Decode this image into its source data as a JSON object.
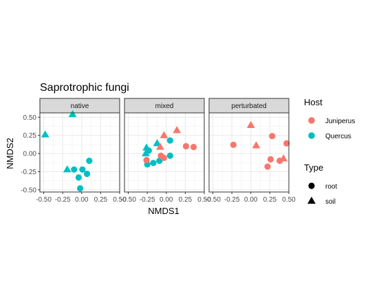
{
  "chart_data": {
    "type": "scatter",
    "title": "Saprotrophic fungi",
    "xlabel": "NMDS1",
    "ylabel": "NMDS2",
    "xlim": [
      -0.55,
      0.5
    ],
    "ylim": [
      -0.53,
      0.56
    ],
    "x_ticks": [
      -0.5,
      -0.25,
      0.0,
      0.25,
      0.5
    ],
    "x_tick_labels": [
      "-0.50",
      "-0.25",
      "0.00",
      "0.25",
      "0.50"
    ],
    "y_ticks": [
      -0.5,
      -0.25,
      0.0,
      0.25,
      0.5
    ],
    "y_tick_labels": [
      "-0.50",
      "-0.25",
      "0.00",
      "0.25",
      "0.50"
    ],
    "grid": true,
    "legend_position": "right",
    "colors": {
      "Juniperus": "#F8766D",
      "Quercus": "#00BFC4"
    },
    "legend": {
      "host_title": "Host",
      "host_entries": [
        "Juniperus",
        "Quercus"
      ],
      "type_title": "Type",
      "type_entries": [
        "root",
        "soil"
      ]
    },
    "facets": [
      {
        "label": "native",
        "points": [
          {
            "x": -0.48,
            "y": 0.26,
            "host": "Quercus",
            "type": "soil"
          },
          {
            "x": -0.12,
            "y": 0.54,
            "host": "Quercus",
            "type": "soil"
          },
          {
            "x": -0.19,
            "y": -0.22,
            "host": "Quercus",
            "type": "soil"
          },
          {
            "x": -0.1,
            "y": -0.22,
            "host": "Quercus",
            "type": "root"
          },
          {
            "x": 0.01,
            "y": -0.22,
            "host": "Quercus",
            "type": "root"
          },
          {
            "x": -0.04,
            "y": -0.33,
            "host": "Quercus",
            "type": "root"
          },
          {
            "x": 0.07,
            "y": -0.28,
            "host": "Quercus",
            "type": "root"
          },
          {
            "x": 0.1,
            "y": -0.1,
            "host": "Quercus",
            "type": "root"
          },
          {
            "x": -0.02,
            "y": -0.48,
            "host": "Quercus",
            "type": "root"
          }
        ]
      },
      {
        "label": "mixed",
        "points": [
          {
            "x": -0.26,
            "y": 0.08,
            "host": "Quercus",
            "type": "soil"
          },
          {
            "x": -0.27,
            "y": 0.0,
            "host": "Quercus",
            "type": "soil"
          },
          {
            "x": -0.23,
            "y": 0.04,
            "host": "Quercus",
            "type": "root"
          },
          {
            "x": -0.25,
            "y": -0.15,
            "host": "Quercus",
            "type": "root"
          },
          {
            "x": -0.17,
            "y": -0.13,
            "host": "Quercus",
            "type": "root"
          },
          {
            "x": -0.12,
            "y": 0.14,
            "host": "Quercus",
            "type": "soil"
          },
          {
            "x": -0.09,
            "y": -0.1,
            "host": "Quercus",
            "type": "root"
          },
          {
            "x": 0.05,
            "y": 0.18,
            "host": "Quercus",
            "type": "root"
          },
          {
            "x": 0.05,
            "y": -0.03,
            "host": "Quercus",
            "type": "root"
          },
          {
            "x": -0.26,
            "y": -0.09,
            "host": "Juniperus",
            "type": "root"
          },
          {
            "x": -0.08,
            "y": 0.09,
            "host": "Juniperus",
            "type": "soil"
          },
          {
            "x": -0.07,
            "y": -0.03,
            "host": "Juniperus",
            "type": "root"
          },
          {
            "x": -0.03,
            "y": -0.06,
            "host": "Juniperus",
            "type": "root"
          },
          {
            "x": -0.03,
            "y": 0.25,
            "host": "Juniperus",
            "type": "soil"
          },
          {
            "x": 0.14,
            "y": 0.32,
            "host": "Juniperus",
            "type": "soil"
          },
          {
            "x": 0.26,
            "y": 0.1,
            "host": "Juniperus",
            "type": "root"
          },
          {
            "x": 0.36,
            "y": 0.09,
            "host": "Juniperus",
            "type": "root"
          }
        ]
      },
      {
        "label": "perturbated",
        "points": [
          {
            "x": -0.23,
            "y": 0.12,
            "host": "Juniperus",
            "type": "root"
          },
          {
            "x": 0.0,
            "y": 0.39,
            "host": "Juniperus",
            "type": "soil"
          },
          {
            "x": 0.07,
            "y": 0.11,
            "host": "Juniperus",
            "type": "soil"
          },
          {
            "x": 0.28,
            "y": 0.24,
            "host": "Juniperus",
            "type": "root"
          },
          {
            "x": 0.26,
            "y": -0.08,
            "host": "Juniperus",
            "type": "root"
          },
          {
            "x": 0.22,
            "y": -0.18,
            "host": "Juniperus",
            "type": "root"
          },
          {
            "x": 0.38,
            "y": -0.1,
            "host": "Juniperus",
            "type": "root"
          },
          {
            "x": 0.43,
            "y": -0.07,
            "host": "Juniperus",
            "type": "soil"
          },
          {
            "x": 0.47,
            "y": 0.14,
            "host": "Juniperus",
            "type": "root"
          }
        ]
      }
    ]
  }
}
